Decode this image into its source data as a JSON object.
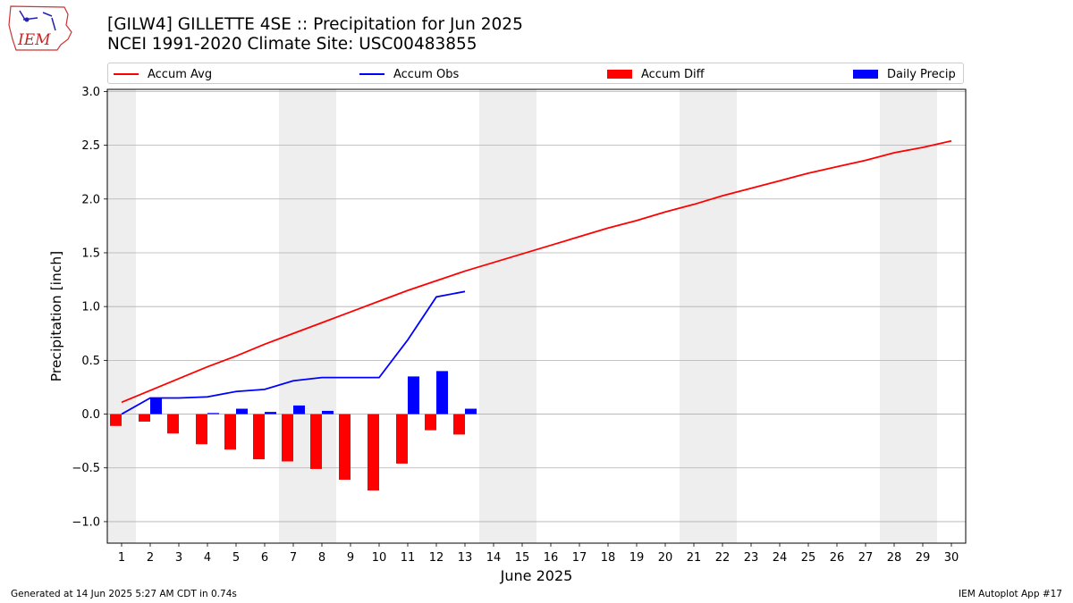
{
  "header": {
    "title_line1": "[GILW4] GILLETTE 4SE :: Precipitation for Jun 2025",
    "title_line2": "NCEI 1991-2020 Climate Site: USC00483855",
    "logo_text": "IEM"
  },
  "footer": {
    "left": "Generated at 14 Jun 2025 5:27 AM CDT in 0.74s",
    "right": "IEM Autoplot App #17"
  },
  "colors": {
    "avg": "#ff0000",
    "obs": "#0000ff",
    "diff": "#ff0000",
    "daily": "#0000ff",
    "weekend_band": "#eeeeee",
    "grid": "#b0b0b0"
  },
  "chart_data": {
    "type": "bar",
    "title": "[GILW4] GILLETTE 4SE :: Precipitation for Jun 2025",
    "subtitle": "NCEI 1991-2020 Climate Site: USC00483855",
    "xlabel": "June 2025",
    "ylabel": "Precipitation [inch]",
    "ylim": [
      -1.2,
      3.02
    ],
    "yticks": [
      -1.0,
      -0.5,
      0.0,
      0.5,
      1.0,
      1.5,
      2.0,
      2.5,
      3.0
    ],
    "ytick_labels": [
      "−1.0",
      "−0.5",
      "0.0",
      "0.5",
      "1.0",
      "1.5",
      "2.0",
      "2.5",
      "3.0"
    ],
    "xlim": [
      0.5,
      30.5
    ],
    "x": [
      1,
      2,
      3,
      4,
      5,
      6,
      7,
      8,
      9,
      10,
      11,
      12,
      13,
      14,
      15,
      16,
      17,
      18,
      19,
      20,
      21,
      22,
      23,
      24,
      25,
      26,
      27,
      28,
      29,
      30
    ],
    "x_tick_labels": [
      "1",
      "2",
      "3",
      "4",
      "5",
      "6",
      "7",
      "8",
      "9",
      "10",
      "11",
      "12",
      "13",
      "14",
      "15",
      "16",
      "17",
      "18",
      "19",
      "20",
      "21",
      "22",
      "23",
      "24",
      "25",
      "26",
      "27",
      "28",
      "29",
      "30"
    ],
    "grid": "horizontal",
    "legend_position": "top",
    "shaded_day_ranges": [
      [
        0.5,
        1.5
      ],
      [
        6.5,
        8.5
      ],
      [
        13.5,
        15.5
      ],
      [
        20.5,
        22.5
      ],
      [
        27.5,
        29.5
      ]
    ],
    "series": [
      {
        "name": "Accum Avg",
        "type": "line",
        "x": [
          1,
          2,
          3,
          4,
          5,
          6,
          7,
          8,
          9,
          10,
          11,
          12,
          13,
          14,
          15,
          16,
          17,
          18,
          19,
          20,
          21,
          22,
          23,
          24,
          25,
          26,
          27,
          28,
          29,
          30
        ],
        "values": [
          0.11,
          0.22,
          0.33,
          0.44,
          0.54,
          0.65,
          0.75,
          0.85,
          0.95,
          1.05,
          1.15,
          1.24,
          1.33,
          1.41,
          1.49,
          1.57,
          1.65,
          1.73,
          1.8,
          1.88,
          1.95,
          2.03,
          2.1,
          2.17,
          2.24,
          2.3,
          2.36,
          2.43,
          2.48,
          2.54
        ]
      },
      {
        "name": "Accum Obs",
        "type": "line",
        "x": [
          1,
          2,
          3,
          4,
          5,
          6,
          7,
          8,
          9,
          10,
          11,
          12,
          13
        ],
        "values": [
          0.0,
          0.15,
          0.15,
          0.16,
          0.21,
          0.23,
          0.31,
          0.34,
          0.34,
          0.34,
          0.69,
          1.09,
          1.14
        ]
      },
      {
        "name": "Accum Diff",
        "type": "bar",
        "x": [
          1,
          2,
          3,
          4,
          5,
          6,
          7,
          8,
          9,
          10,
          11,
          12,
          13
        ],
        "values": [
          -0.11,
          -0.07,
          -0.18,
          -0.28,
          -0.33,
          -0.42,
          -0.44,
          -0.51,
          -0.61,
          -0.71,
          -0.46,
          -0.15,
          -0.19
        ]
      },
      {
        "name": "Daily Precip",
        "type": "bar",
        "x": [
          1,
          2,
          3,
          4,
          5,
          6,
          7,
          8,
          9,
          10,
          11,
          12,
          13
        ],
        "values": [
          0.0,
          0.15,
          0.0,
          0.01,
          0.05,
          0.02,
          0.08,
          0.03,
          0.0,
          0.0,
          0.35,
          0.4,
          0.05
        ]
      }
    ]
  }
}
